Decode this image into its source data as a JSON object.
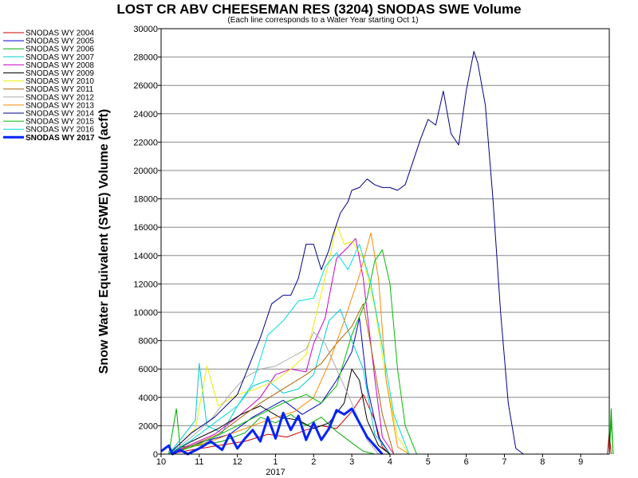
{
  "chart_data": {
    "type": "line",
    "title": "LOST CR ABV CHEESEMAN RES (3204) SNODAS SWE Volume",
    "subtitle": "(Each line corresponds to a Water Year starting Oct 1)",
    "ylabel": "Snow Water Equivalent (SWE) Volume (acft)",
    "xlabel": "",
    "x_ticks": [
      "10",
      "11",
      "12",
      "1",
      "2",
      "3",
      "4",
      "5",
      "6",
      "7",
      "8",
      "9"
    ],
    "x_year_label": "2017",
    "ylim": [
      0,
      30000
    ],
    "y_ticks": [
      0,
      2000,
      4000,
      6000,
      8000,
      10000,
      12000,
      14000,
      16000,
      18000,
      20000,
      22000,
      24000,
      26000,
      28000,
      30000
    ],
    "grid": "horizontal",
    "legend_position": "left",
    "x_unit": "month index from Oct 1 (0 = Oct 1, 11.75 = end of Sep)",
    "series": [
      {
        "name": "SNODAS WY 2004",
        "color": "#cc0000",
        "width": 1,
        "points": [
          [
            0.2,
            0
          ],
          [
            0.8,
            300
          ],
          [
            1.5,
            600
          ],
          [
            2.2,
            900
          ],
          [
            2.8,
            1400
          ],
          [
            3.3,
            1200
          ],
          [
            3.8,
            1700
          ],
          [
            4.2,
            2000
          ],
          [
            4.6,
            1800
          ],
          [
            5.0,
            3000
          ],
          [
            5.3,
            4200
          ],
          [
            5.6,
            2400
          ],
          [
            5.8,
            500
          ],
          [
            6.0,
            0
          ],
          [
            11.7,
            0
          ],
          [
            11.75,
            1500
          ],
          [
            11.8,
            0
          ]
        ]
      },
      {
        "name": "SNODAS WY 2005",
        "color": "#0000cc",
        "width": 1,
        "points": [
          [
            0.2,
            0
          ],
          [
            1.0,
            800
          ],
          [
            1.8,
            1400
          ],
          [
            2.4,
            2600
          ],
          [
            2.8,
            3200
          ],
          [
            3.2,
            3800
          ],
          [
            3.7,
            2800
          ],
          [
            4.2,
            3600
          ],
          [
            4.6,
            5200
          ],
          [
            5.0,
            7200
          ],
          [
            5.2,
            9600
          ],
          [
            5.4,
            4800
          ],
          [
            5.7,
            1200
          ],
          [
            6.0,
            0
          ]
        ]
      },
      {
        "name": "SNODAS WY 2006",
        "color": "#00aa00",
        "width": 1,
        "points": [
          [
            0.2,
            0
          ],
          [
            0.4,
            3200
          ],
          [
            0.5,
            500
          ],
          [
            1.0,
            600
          ],
          [
            1.6,
            900
          ],
          [
            2.2,
            1500
          ],
          [
            2.6,
            2600
          ],
          [
            3.0,
            2200
          ],
          [
            3.4,
            2800
          ],
          [
            3.8,
            2000
          ],
          [
            4.2,
            2600
          ],
          [
            4.6,
            1600
          ],
          [
            5.0,
            800
          ],
          [
            5.3,
            200
          ],
          [
            5.6,
            0
          ],
          [
            11.75,
            0
          ],
          [
            11.8,
            3200
          ],
          [
            11.85,
            0
          ]
        ]
      },
      {
        "name": "SNODAS WY 2007",
        "color": "#00cccc",
        "width": 1,
        "points": [
          [
            0.2,
            0
          ],
          [
            0.5,
            1000
          ],
          [
            0.9,
            2400
          ],
          [
            1.0,
            6400
          ],
          [
            1.2,
            2000
          ],
          [
            1.6,
            1500
          ],
          [
            2.0,
            3400
          ],
          [
            2.4,
            4800
          ],
          [
            2.8,
            5200
          ],
          [
            3.2,
            4300
          ],
          [
            3.6,
            4600
          ],
          [
            4.0,
            5600
          ],
          [
            4.4,
            9400
          ],
          [
            4.7,
            10200
          ],
          [
            5.0,
            8000
          ],
          [
            5.3,
            6000
          ],
          [
            5.6,
            1400
          ],
          [
            6.0,
            0
          ]
        ]
      },
      {
        "name": "SNODAS WY 2008",
        "color": "#cc00cc",
        "width": 1,
        "points": [
          [
            0.2,
            0
          ],
          [
            0.8,
            700
          ],
          [
            1.4,
            1400
          ],
          [
            2.0,
            2600
          ],
          [
            2.6,
            4000
          ],
          [
            3.0,
            5600
          ],
          [
            3.4,
            6000
          ],
          [
            3.8,
            5800
          ],
          [
            4.0,
            7800
          ],
          [
            4.3,
            9600
          ],
          [
            4.6,
            13800
          ],
          [
            4.9,
            14600
          ],
          [
            5.1,
            15200
          ],
          [
            5.3,
            12400
          ],
          [
            5.6,
            5400
          ],
          [
            5.8,
            1200
          ],
          [
            6.1,
            0
          ]
        ]
      },
      {
        "name": "SNODAS WY 2009",
        "color": "#000000",
        "width": 1,
        "points": [
          [
            0.2,
            0
          ],
          [
            0.8,
            900
          ],
          [
            1.5,
            1800
          ],
          [
            2.1,
            2800
          ],
          [
            2.6,
            3400
          ],
          [
            3.1,
            2600
          ],
          [
            3.6,
            2400
          ],
          [
            4.0,
            1800
          ],
          [
            4.4,
            2200
          ],
          [
            4.8,
            3600
          ],
          [
            5.0,
            6000
          ],
          [
            5.2,
            5200
          ],
          [
            5.4,
            2400
          ],
          [
            5.7,
            600
          ],
          [
            6.0,
            0
          ]
        ]
      },
      {
        "name": "SNODAS WY 2010",
        "color": "#eeee00",
        "width": 1,
        "points": [
          [
            0.2,
            0
          ],
          [
            0.9,
            1800
          ],
          [
            1.2,
            6200
          ],
          [
            1.5,
            3400
          ],
          [
            2.0,
            4200
          ],
          [
            2.5,
            4600
          ],
          [
            3.0,
            5200
          ],
          [
            3.4,
            6000
          ],
          [
            3.8,
            7000
          ],
          [
            4.1,
            10200
          ],
          [
            4.4,
            13600
          ],
          [
            4.6,
            16200
          ],
          [
            4.8,
            14800
          ],
          [
            5.0,
            15000
          ],
          [
            5.3,
            13800
          ],
          [
            5.6,
            10400
          ],
          [
            5.9,
            5200
          ],
          [
            6.2,
            1200
          ],
          [
            6.5,
            0
          ]
        ]
      },
      {
        "name": "SNODAS WY 2011",
        "color": "#aa6600",
        "width": 1,
        "points": [
          [
            0.2,
            0
          ],
          [
            0.8,
            600
          ],
          [
            1.5,
            1400
          ],
          [
            2.1,
            2600
          ],
          [
            2.6,
            3600
          ],
          [
            3.2,
            4600
          ],
          [
            3.8,
            5600
          ],
          [
            4.2,
            6400
          ],
          [
            4.6,
            7800
          ],
          [
            5.0,
            9000
          ],
          [
            5.3,
            10600
          ],
          [
            5.5,
            7600
          ],
          [
            5.8,
            2800
          ],
          [
            6.1,
            0
          ]
        ]
      },
      {
        "name": "SNODAS WY 2012",
        "color": "#aaaaaa",
        "width": 1,
        "points": [
          [
            0.2,
            0
          ],
          [
            0.8,
            1200
          ],
          [
            1.3,
            2400
          ],
          [
            1.8,
            4200
          ],
          [
            2.2,
            5400
          ],
          [
            2.6,
            6000
          ],
          [
            3.0,
            6200
          ],
          [
            3.4,
            6800
          ],
          [
            3.8,
            7400
          ],
          [
            4.0,
            8600
          ],
          [
            4.3,
            7800
          ],
          [
            4.6,
            6000
          ],
          [
            5.0,
            3600
          ],
          [
            5.4,
            1000
          ],
          [
            5.7,
            0
          ]
        ]
      },
      {
        "name": "SNODAS WY 2013",
        "color": "#ff8800",
        "width": 1,
        "points": [
          [
            0.2,
            0
          ],
          [
            0.8,
            500
          ],
          [
            1.4,
            1000
          ],
          [
            2.0,
            1600
          ],
          [
            2.6,
            2200
          ],
          [
            3.0,
            2600
          ],
          [
            3.5,
            3000
          ],
          [
            4.0,
            4000
          ],
          [
            4.4,
            6400
          ],
          [
            4.8,
            9400
          ],
          [
            5.2,
            12600
          ],
          [
            5.5,
            15600
          ],
          [
            5.7,
            12400
          ],
          [
            5.9,
            5200
          ],
          [
            6.2,
            500
          ],
          [
            6.5,
            0
          ]
        ]
      },
      {
        "name": "SNODAS WY 2014",
        "color": "#000088",
        "width": 1,
        "points": [
          [
            0.2,
            0
          ],
          [
            0.8,
            1500
          ],
          [
            1.4,
            2600
          ],
          [
            2.0,
            4200
          ],
          [
            2.6,
            8200
          ],
          [
            2.9,
            10600
          ],
          [
            3.2,
            11200
          ],
          [
            3.4,
            11200
          ],
          [
            3.6,
            12400
          ],
          [
            3.8,
            14800
          ],
          [
            4.0,
            14800
          ],
          [
            4.2,
            13000
          ],
          [
            4.4,
            14400
          ],
          [
            4.5,
            15400
          ],
          [
            4.7,
            17000
          ],
          [
            4.9,
            17800
          ],
          [
            5.0,
            18600
          ],
          [
            5.2,
            18800
          ],
          [
            5.4,
            19400
          ],
          [
            5.6,
            19000
          ],
          [
            5.8,
            18800
          ],
          [
            6.0,
            18800
          ],
          [
            6.2,
            18600
          ],
          [
            6.4,
            19000
          ],
          [
            6.6,
            20600
          ],
          [
            6.8,
            22200
          ],
          [
            7.0,
            23600
          ],
          [
            7.2,
            23200
          ],
          [
            7.4,
            25600
          ],
          [
            7.6,
            22600
          ],
          [
            7.8,
            21800
          ],
          [
            8.0,
            25600
          ],
          [
            8.2,
            28400
          ],
          [
            8.3,
            27600
          ],
          [
            8.5,
            24600
          ],
          [
            8.7,
            18000
          ],
          [
            8.9,
            10000
          ],
          [
            9.1,
            3600
          ],
          [
            9.3,
            400
          ],
          [
            9.5,
            0
          ]
        ]
      },
      {
        "name": "SNODAS WY 2015",
        "color": "#00bb00",
        "width": 1,
        "points": [
          [
            0.2,
            0
          ],
          [
            0.8,
            500
          ],
          [
            1.4,
            1200
          ],
          [
            2.0,
            2000
          ],
          [
            2.6,
            2800
          ],
          [
            3.2,
            3600
          ],
          [
            3.8,
            4200
          ],
          [
            4.2,
            3600
          ],
          [
            4.6,
            4800
          ],
          [
            5.0,
            8400
          ],
          [
            5.4,
            11000
          ],
          [
            5.6,
            13600
          ],
          [
            5.8,
            14400
          ],
          [
            6.0,
            12000
          ],
          [
            6.2,
            6000
          ],
          [
            6.4,
            2000
          ],
          [
            6.7,
            0
          ],
          [
            11.75,
            0
          ],
          [
            11.8,
            2400
          ],
          [
            11.85,
            0
          ]
        ]
      },
      {
        "name": "SNODAS WY 2016",
        "color": "#00dddd",
        "width": 1,
        "points": [
          [
            0.2,
            0
          ],
          [
            0.8,
            1000
          ],
          [
            1.4,
            2200
          ],
          [
            2.0,
            3400
          ],
          [
            2.4,
            5000
          ],
          [
            2.8,
            8400
          ],
          [
            3.2,
            9400
          ],
          [
            3.6,
            10800
          ],
          [
            4.0,
            11000
          ],
          [
            4.3,
            13200
          ],
          [
            4.6,
            14200
          ],
          [
            4.9,
            13000
          ],
          [
            5.2,
            14800
          ],
          [
            5.5,
            12000
          ],
          [
            5.8,
            7600
          ],
          [
            6.1,
            2800
          ],
          [
            6.5,
            0
          ]
        ]
      },
      {
        "name": "SNODAS WY 2017",
        "color": "#0022ff",
        "width": 3,
        "points": [
          [
            0.0,
            200
          ],
          [
            0.2,
            600
          ],
          [
            0.3,
            0
          ],
          [
            0.5,
            300
          ],
          [
            0.7,
            0
          ],
          [
            1.0,
            400
          ],
          [
            1.3,
            900
          ],
          [
            1.6,
            300
          ],
          [
            1.8,
            1400
          ],
          [
            2.0,
            400
          ],
          [
            2.2,
            1100
          ],
          [
            2.4,
            1700
          ],
          [
            2.6,
            900
          ],
          [
            2.8,
            2600
          ],
          [
            3.0,
            1100
          ],
          [
            3.2,
            2900
          ],
          [
            3.4,
            1700
          ],
          [
            3.6,
            2700
          ],
          [
            3.8,
            1000
          ],
          [
            4.0,
            2200
          ],
          [
            4.2,
            1000
          ],
          [
            4.4,
            1800
          ],
          [
            4.6,
            3100
          ],
          [
            4.8,
            2800
          ],
          [
            5.0,
            3200
          ],
          [
            5.2,
            2200
          ],
          [
            5.4,
            1200
          ],
          [
            5.6,
            600
          ],
          [
            5.8,
            0
          ]
        ]
      }
    ]
  }
}
